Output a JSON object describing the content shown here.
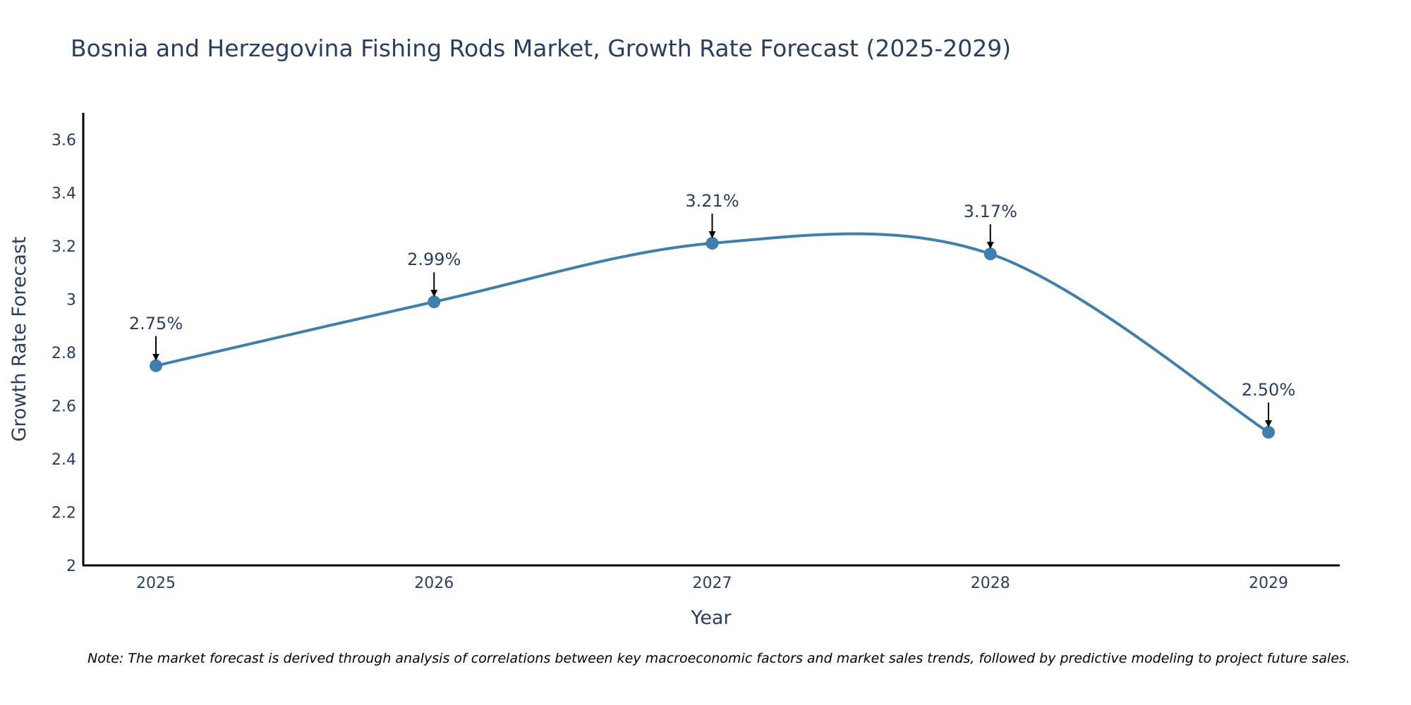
{
  "chart_data": {
    "type": "line",
    "title": "Bosnia and Herzegovina Fishing Rods Market, Growth Rate Forecast (2025-2029)",
    "xlabel": "Year",
    "ylabel": "Growth Rate Forecast",
    "categories": [
      "2025",
      "2026",
      "2027",
      "2028",
      "2029"
    ],
    "series": [
      {
        "name": "Growth Rate Forecast",
        "values": [
          2.75,
          2.99,
          3.21,
          3.17,
          2.5
        ],
        "labels": [
          "2.75%",
          "2.99%",
          "3.21%",
          "3.17%",
          "2.50%"
        ]
      }
    ],
    "ylim": [
      2.0,
      3.7
    ],
    "yticks": [
      2,
      2.2,
      2.4,
      2.6,
      2.8,
      3,
      3.2,
      3.4,
      3.6
    ],
    "ytick_labels": [
      "2",
      "2.2",
      "2.4",
      "2.6",
      "2.8",
      "3",
      "3.2",
      "3.4",
      "3.6"
    ],
    "grid": false,
    "line_shape": "spline",
    "note": "Note: The market forecast is derived through analysis of correlations between key macroeconomic factors and market sales trends, followed by predictive modeling to project future sales.",
    "colors": {
      "line": "#3f7fae",
      "marker": "#3f7fae",
      "text": "#2a3f5f",
      "axis": "#000000",
      "arrow": "#000000"
    }
  }
}
